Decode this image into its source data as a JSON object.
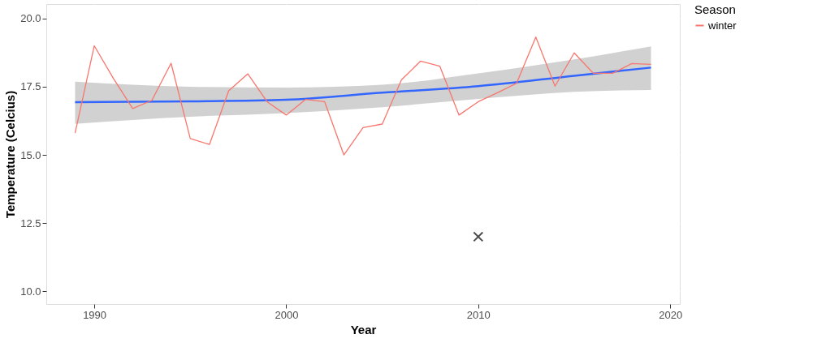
{
  "chart_data": {
    "type": "line",
    "xlabel": "Year",
    "ylabel": "Temperature (Celcius)",
    "legend_title": "Season",
    "xlim": [
      1987.5,
      2020.5
    ],
    "xticks": [
      1990,
      2000,
      2010,
      2020
    ],
    "ylim": [
      9.53,
      20.53
    ],
    "yticks": [
      {
        "value": 10,
        "label": "10.0"
      },
      {
        "value": 12.5,
        "label": "12.5"
      },
      {
        "value": 15,
        "label": "15.0"
      },
      {
        "value": 17.5,
        "label": "17.5"
      },
      {
        "value": 20,
        "label": "20.0"
      }
    ],
    "grid": true,
    "legend": "right",
    "x": [
      1989,
      1990,
      1991,
      1992,
      1993,
      1994,
      1995,
      1996,
      1997,
      1998,
      1999,
      2000,
      2001,
      2002,
      2003,
      2004,
      2005,
      2006,
      2007,
      2008,
      2009,
      2010,
      2011,
      2012,
      2013,
      2014,
      2015,
      2016,
      2017,
      2018,
      2019
    ],
    "series": [
      {
        "name": "winter",
        "color": "#f8766d",
        "values": [
          15.8,
          19.0,
          17.8,
          16.7,
          17.0,
          18.36,
          15.6,
          15.38,
          17.35,
          17.97,
          16.95,
          16.46,
          17.03,
          16.95,
          15.0,
          16.0,
          16.13,
          17.75,
          18.44,
          18.25,
          16.46,
          16.95,
          17.28,
          17.63,
          19.32,
          17.52,
          18.74,
          17.99,
          17.99,
          18.35,
          18.32
        ]
      },
      {
        "type": "line",
        "color": "#3366ff",
        "x": [
          1989,
          1995,
          2000,
          2005,
          2010,
          2015,
          2019
        ],
        "values": [
          16.93,
          16.96,
          17.02,
          17.28,
          17.52,
          17.9,
          18.2
        ],
        "lower": [
          16.14,
          16.4,
          16.53,
          16.75,
          17.05,
          17.31,
          17.38
        ],
        "upper": [
          17.68,
          17.5,
          17.47,
          17.57,
          17.99,
          18.5,
          18.98
        ]
      },
      {
        "type": "scatter",
        "color": "#000000",
        "marker": "cross",
        "x": [
          2010
        ],
        "values": [
          12.0
        ]
      }
    ]
  }
}
